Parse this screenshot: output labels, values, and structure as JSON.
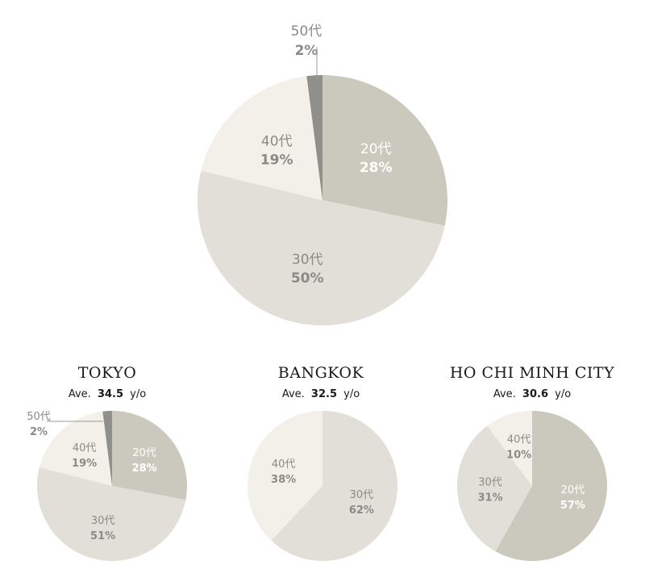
{
  "colors": {
    "20s": "#cbc9bd",
    "30s": "#e1dfd8",
    "40s": "#f2f0e9",
    "50s": "#8f8f8b",
    "label_dark": "#8a8a87",
    "label_light": "#ffffff"
  },
  "chart_data": [
    {
      "type": "pie",
      "id": "overall",
      "title": "",
      "slices": [
        {
          "key": "20s",
          "label": "20代",
          "pct_label": "28%",
          "value": 28
        },
        {
          "key": "30s",
          "label": "30代",
          "pct_label": "50%",
          "value": 50
        },
        {
          "key": "40s",
          "label": "40代",
          "pct_label": "19%",
          "value": 19
        },
        {
          "key": "50s",
          "label": "50代",
          "pct_label": "2%",
          "value": 2
        }
      ]
    },
    {
      "type": "pie",
      "id": "tokyo",
      "title": "TOKYO",
      "ave_prefix": "Ave.",
      "ave_value": "34.5",
      "ave_suffix": "y/o",
      "slices": [
        {
          "key": "20s",
          "label": "20代",
          "pct_label": "28%",
          "value": 28
        },
        {
          "key": "30s",
          "label": "30代",
          "pct_label": "51%",
          "value": 51
        },
        {
          "key": "40s",
          "label": "40代",
          "pct_label": "19%",
          "value": 19
        },
        {
          "key": "50s",
          "label": "50代",
          "pct_label": "2%",
          "value": 2
        }
      ]
    },
    {
      "type": "pie",
      "id": "bangkok",
      "title": "BANGKOK",
      "ave_prefix": "Ave.",
      "ave_value": "32.5",
      "ave_suffix": "y/o",
      "slices": [
        {
          "key": "30s",
          "label": "30代",
          "pct_label": "62%",
          "value": 62
        },
        {
          "key": "40s",
          "label": "40代",
          "pct_label": "38%",
          "value": 38
        }
      ]
    },
    {
      "type": "pie",
      "id": "hcmc",
      "title": "HO CHI MINH CITY",
      "ave_prefix": "Ave.",
      "ave_value": "30.6",
      "ave_suffix": "y/o",
      "slices": [
        {
          "key": "20s",
          "label": "20代",
          "pct_label": "57%",
          "value": 57
        },
        {
          "key": "30s",
          "label": "30代",
          "pct_label": "31%",
          "value": 31
        },
        {
          "key": "40s",
          "label": "40代",
          "pct_label": "10%",
          "value": 10
        }
      ]
    }
  ]
}
